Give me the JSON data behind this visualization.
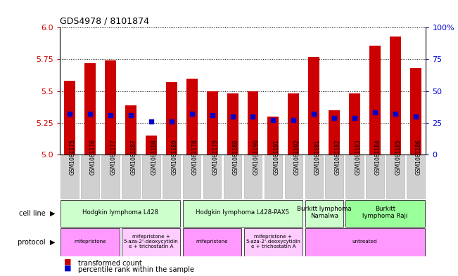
{
  "title": "GDS4978 / 8101874",
  "samples": [
    "GSM1081175",
    "GSM1081176",
    "GSM1081177",
    "GSM1081187",
    "GSM1081188",
    "GSM1081189",
    "GSM1081178",
    "GSM1081179",
    "GSM1081180",
    "GSM1081190",
    "GSM1081191",
    "GSM1081192",
    "GSM1081181",
    "GSM1081182",
    "GSM1081183",
    "GSM1081184",
    "GSM1081185",
    "GSM1081186"
  ],
  "transformed_count": [
    5.58,
    5.72,
    5.74,
    5.39,
    5.15,
    5.57,
    5.6,
    5.5,
    5.48,
    5.5,
    5.3,
    5.48,
    5.77,
    5.35,
    5.48,
    5.86,
    5.93,
    5.68
  ],
  "percentile_rank": [
    32,
    32,
    31,
    31,
    26,
    26,
    32,
    31,
    30,
    30,
    27,
    27,
    32,
    29,
    29,
    33,
    32,
    30
  ],
  "cell_line_groups": [
    {
      "label": "Hodgkin lymphoma L428",
      "start": 0,
      "end": 5,
      "color": "#ccffcc"
    },
    {
      "label": "Hodgkin lymphoma L428-PAX5",
      "start": 6,
      "end": 11,
      "color": "#ccffcc"
    },
    {
      "label": "Burkitt lymphoma\nNamalwa",
      "start": 12,
      "end": 13,
      "color": "#ccffcc"
    },
    {
      "label": "Burkitt\nlymphoma Raji",
      "start": 14,
      "end": 17,
      "color": "#99ff99"
    }
  ],
  "protocol_groups": [
    {
      "label": "mifepristone",
      "start": 0,
      "end": 2,
      "color": "#ff99ff"
    },
    {
      "label": "mifepristone +\n5-aza-2'-deoxycytidin\ne + trichostatin A",
      "start": 3,
      "end": 5,
      "color": "#ffccff"
    },
    {
      "label": "mifepristone",
      "start": 6,
      "end": 8,
      "color": "#ff99ff"
    },
    {
      "label": "mifepristone +\n5-aza-2'-deoxycytidin\ne + trichostatin A",
      "start": 9,
      "end": 11,
      "color": "#ffccff"
    },
    {
      "label": "untreated",
      "start": 12,
      "end": 17,
      "color": "#ff99ff"
    }
  ],
  "ylim_left": [
    5.0,
    6.0
  ],
  "ylim_right": [
    0,
    100
  ],
  "yticks_left": [
    5.0,
    5.25,
    5.5,
    5.75,
    6.0
  ],
  "yticks_right": [
    0,
    25,
    50,
    75,
    100
  ],
  "bar_color": "#cc0000",
  "dot_color": "#0000cc",
  "background_color": "#ffffff",
  "sample_box_color": "#d0d0d0"
}
